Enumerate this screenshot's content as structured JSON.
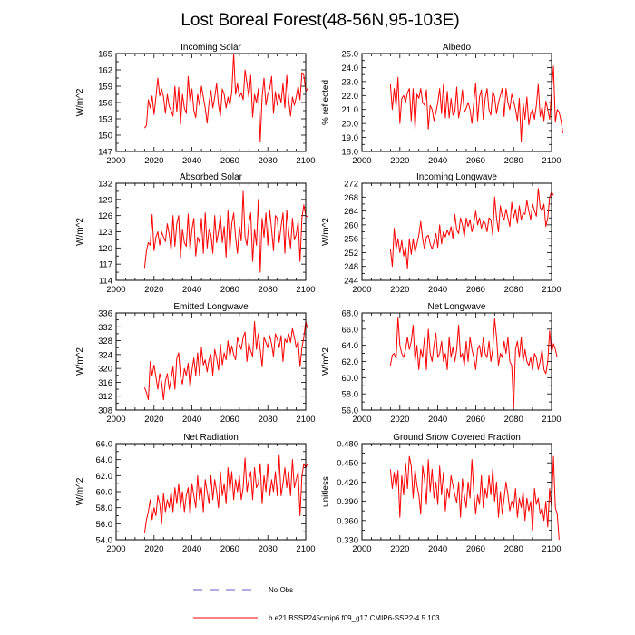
{
  "title": "Lost Boreal Forest(48-56N,95-103E)",
  "colors": {
    "model": "#ff0000",
    "obs": "#6a5acd",
    "axis": "#000000"
  },
  "legend": {
    "obs_label": "No Obs",
    "model_label": "b.e21.BSSP245cmip6.f09_g17.CMIP6-SSP2-4.5.103"
  },
  "chart_data": [
    {
      "type": "line",
      "title": "Incoming Solar",
      "ylabel": "W/m^2",
      "xlim": [
        2000,
        2100
      ],
      "xticks": [
        "2000",
        "2020",
        "2040",
        "2060",
        "2080",
        "2100"
      ],
      "ylim": [
        147,
        165
      ],
      "yticks": [
        "147",
        "150",
        "153",
        "156",
        "159",
        "162",
        "165"
      ],
      "series": [
        {
          "name": "b.e21.BSSP245cmip6.f09_g17.CMIP6-SSP2-4.5.103",
          "x_start": 2015,
          "values": [
            151.3,
            151.8,
            156.5,
            155.0,
            157.2,
            153.8,
            157.0,
            160.5,
            157.2,
            158.5,
            157.0,
            154.0,
            157.5,
            155.3,
            154.5,
            153.5,
            159.0,
            154.3,
            158.8,
            152.0,
            157.5,
            155.0,
            154.0,
            160.8,
            156.0,
            158.5,
            154.5,
            153.2,
            157.5,
            155.5,
            159.0,
            157.0,
            155.0,
            152.2,
            156.0,
            158.2,
            155.0,
            157.0,
            159.5,
            155.5,
            153.5,
            158.5,
            157.5,
            155.0,
            157.0,
            155.5,
            158.0,
            165.0,
            157.5,
            159.5,
            157.0,
            157.8,
            156.5,
            162.0,
            159.5,
            157.0,
            161.0,
            153.3,
            157.5,
            156.0,
            158.5,
            148.8,
            157.0,
            160.5,
            155.5,
            157.5,
            158.5,
            160.8,
            154.0,
            158.0,
            155.5,
            157.5,
            156.0,
            159.5,
            155.0,
            161.0,
            156.5,
            153.5,
            157.0,
            155.5,
            157.0,
            159.0,
            156.5,
            161.5,
            161.0,
            158.0,
            158.6
          ]
        }
      ]
    },
    {
      "type": "line",
      "title": "Albedo",
      "ylabel": "% reflected",
      "xlim": [
        2000,
        2100
      ],
      "xticks": [
        "2000",
        "2020",
        "2040",
        "2060",
        "2080",
        "2100"
      ],
      "ylim": [
        18.0,
        25.0
      ],
      "yticks": [
        "18.0",
        "19.0",
        "20.0",
        "21.0",
        "22.0",
        "23.0",
        "24.0",
        "25.0"
      ],
      "series": [
        {
          "name": "b.e21.BSSP245cmip6.f09_g17.CMIP6-SSP2-4.5.103",
          "x_start": 2015,
          "values": [
            22.8,
            21.0,
            22.5,
            21.2,
            23.3,
            20.0,
            21.8,
            22.0,
            21.5,
            22.2,
            22.5,
            20.2,
            22.5,
            19.6,
            22.1,
            21.8,
            22.5,
            21.5,
            21.3,
            22.4,
            19.6,
            21.3,
            21.0,
            20.2,
            20.8,
            21.5,
            22.5,
            20.7,
            22.8,
            20.4,
            22.3,
            20.4,
            21.8,
            20.6,
            20.8,
            22.6,
            20.4,
            21.2,
            22.4,
            20.8,
            21.1,
            21.5,
            21.0,
            20.0,
            21.5,
            22.9,
            20.2,
            21.9,
            22.4,
            20.3,
            21.8,
            22.5,
            21.0,
            20.6,
            22.3,
            21.9,
            20.7,
            21.5,
            22.0,
            22.5,
            20.5,
            22.5,
            21.5,
            21.0,
            22.1,
            21.6,
            21.0,
            20.2,
            21.8,
            18.7,
            21.5,
            20.3,
            21.9,
            19.9,
            20.7,
            21.0,
            20.3,
            21.3,
            22.8,
            20.5,
            21.2,
            20.2,
            21.6,
            21.0,
            20.3,
            22.3,
            24.1,
            20.1,
            21.0,
            20.8,
            20.2,
            19.3
          ]
        }
      ]
    },
    {
      "type": "line",
      "title": "Absorbed Solar",
      "ylabel": "W/m^2",
      "xlim": [
        2000,
        2100
      ],
      "xticks": [
        "2000",
        "2020",
        "2040",
        "2060",
        "2080",
        "2100"
      ],
      "ylim": [
        114,
        132
      ],
      "yticks": [
        "114",
        "117",
        "120",
        "123",
        "126",
        "129",
        "132"
      ],
      "series": [
        {
          "name": "b.e21.BSSP245cmip6.f09_g17.CMIP6-SSP2-4.5.103",
          "x_start": 2015,
          "values": [
            116.3,
            119.5,
            121.0,
            120.5,
            126.2,
            119.5,
            122.0,
            123.0,
            120.5,
            123.0,
            122.0,
            121.2,
            124.5,
            122.5,
            119.5,
            126.0,
            120.3,
            124.5,
            126.0,
            118.2,
            123.5,
            121.0,
            120.3,
            126.3,
            119.5,
            123.5,
            125.5,
            118.5,
            122.0,
            121.0,
            125.5,
            119.0,
            126.5,
            120.0,
            123.5,
            122.5,
            119.0,
            126.0,
            121.0,
            123.0,
            126.0,
            121.0,
            124.0,
            118.3,
            127.0,
            119.5,
            124.5,
            126.5,
            122.0,
            119.0,
            124.0,
            121.3,
            130.5,
            122.0,
            120.5,
            124.5,
            126.5,
            117.5,
            123.5,
            120.5,
            129.0,
            115.5,
            125.5,
            122.0,
            126.5,
            120.5,
            127.0,
            123.5,
            119.5,
            126.0,
            125.5,
            121.0,
            124.0,
            126.5,
            119.0,
            127.0,
            123.0,
            120.0,
            125.5,
            121.5,
            122.5,
            125.0,
            117.5,
            125.5,
            128.0,
            126.0,
            125.8
          ]
        }
      ]
    },
    {
      "type": "line",
      "title": "Incoming Longwave",
      "ylabel": "W/m^2",
      "xlim": [
        2000,
        2100
      ],
      "xticks": [
        "2000",
        "2020",
        "2040",
        "2060",
        "2080",
        "2100"
      ],
      "ylim": [
        244,
        272
      ],
      "yticks": [
        "244",
        "248",
        "252",
        "256",
        "260",
        "264",
        "268",
        "272"
      ],
      "series": [
        {
          "name": "b.e21.BSSP245cmip6.f09_g17.CMIP6-SSP2-4.5.103",
          "x_start": 2015,
          "values": [
            253.0,
            248.0,
            259.0,
            253.0,
            256.0,
            252.0,
            255.5,
            251.0,
            253.5,
            247.5,
            256.0,
            251.5,
            256.0,
            252.0,
            254.5,
            257.0,
            261.0,
            256.0,
            253.0,
            256.5,
            257.0,
            254.5,
            253.0,
            255.0,
            257.5,
            253.5,
            260.0,
            254.5,
            258.0,
            256.5,
            258.5,
            257.0,
            259.5,
            256.0,
            263.0,
            258.5,
            257.5,
            262.0,
            260.0,
            256.5,
            262.0,
            259.5,
            261.5,
            258.0,
            260.5,
            264.0,
            260.0,
            262.0,
            259.0,
            261.0,
            260.5,
            258.0,
            262.0,
            261.5,
            257.0,
            268.0,
            262.0,
            258.0,
            265.5,
            262.5,
            261.5,
            264.5,
            262.0,
            259.5,
            266.5,
            262.0,
            264.5,
            260.5,
            265.5,
            261.5,
            263.5,
            263.0,
            267.0,
            264.0,
            261.5,
            266.0,
            264.0,
            262.5,
            270.5,
            265.0,
            264.0,
            266.0,
            259.5,
            262.0,
            268.0,
            269.5,
            268.5
          ]
        }
      ]
    },
    {
      "type": "line",
      "title": "Emitted Longwave",
      "ylabel": "W/m^2",
      "xlim": [
        2000,
        2100
      ],
      "xticks": [
        "2000",
        "2020",
        "2040",
        "2060",
        "2080",
        "2100"
      ],
      "ylim": [
        308,
        336
      ],
      "yticks": [
        "308",
        "312",
        "316",
        "320",
        "324",
        "328",
        "332",
        "336"
      ],
      "series": [
        {
          "name": "b.e21.BSSP245cmip6.f09_g17.CMIP6-SSP2-4.5.103",
          "x_start": 2015,
          "values": [
            314.5,
            313.0,
            311.0,
            322.0,
            318.0,
            321.0,
            317.5,
            314.0,
            318.5,
            316.0,
            311.0,
            316.5,
            318.5,
            314.0,
            317.0,
            320.5,
            314.0,
            323.0,
            324.5,
            317.5,
            315.5,
            320.0,
            318.0,
            321.5,
            314.5,
            319.5,
            323.0,
            318.0,
            324.5,
            318.0,
            326.0,
            321.0,
            322.5,
            319.0,
            322.5,
            324.0,
            318.0,
            325.5,
            323.0,
            319.5,
            327.0,
            321.0,
            324.5,
            322.5,
            328.0,
            323.5,
            326.5,
            324.0,
            322.5,
            329.0,
            327.0,
            325.5,
            329.0,
            330.5,
            322.0,
            327.5,
            325.0,
            323.5,
            333.5,
            325.5,
            330.0,
            325.5,
            320.5,
            329.0,
            327.5,
            326.0,
            329.5,
            327.0,
            323.5,
            330.0,
            328.5,
            326.0,
            329.5,
            322.0,
            328.5,
            327.5,
            330.0,
            327.5,
            331.5,
            329.0,
            326.0,
            328.0,
            320.5,
            326.0,
            329.0,
            333.5,
            331.5
          ]
        }
      ]
    },
    {
      "type": "line",
      "title": "Net Longwave",
      "ylabel": "W/m^2",
      "xlim": [
        2000,
        2100
      ],
      "xticks": [
        "2000",
        "2020",
        "2040",
        "2060",
        "2080",
        "2100"
      ],
      "ylim": [
        56.0,
        68.0
      ],
      "yticks": [
        "56.0",
        "58.0",
        "60.0",
        "62.0",
        "64.0",
        "66.0",
        "68.0"
      ],
      "series": [
        {
          "name": "b.e21.BSSP245cmip6.f09_g17.CMIP6-SSP2-4.5.103",
          "x_start": 2015,
          "values": [
            61.5,
            62.8,
            63.0,
            62.3,
            67.5,
            64.0,
            63.0,
            62.5,
            63.5,
            65.0,
            63.5,
            64.5,
            66.5,
            62.0,
            64.0,
            61.0,
            63.5,
            62.5,
            65.0,
            61.0,
            66.0,
            63.0,
            62.0,
            64.0,
            65.5,
            62.5,
            63.0,
            64.5,
            62.0,
            63.0,
            61.0,
            65.0,
            62.5,
            63.8,
            62.0,
            63.5,
            66.5,
            62.5,
            63.0,
            61.5,
            64.5,
            62.0,
            65.0,
            63.5,
            62.5,
            61.0,
            63.5,
            64.0,
            62.5,
            65.0,
            63.0,
            62.5,
            64.5,
            62.0,
            63.5,
            67.3,
            65.0,
            61.5,
            63.0,
            62.5,
            64.5,
            63.0,
            65.0,
            62.0,
            61.5,
            56.2,
            63.5,
            64.5,
            62.5,
            65.0,
            62.0,
            63.5,
            62.0,
            61.5,
            62.5,
            61.0,
            63.0,
            62.5,
            61.0,
            62.0,
            63.5,
            61.0,
            60.5,
            62.0,
            65.8,
            63.0,
            64.2,
            63.5,
            62.5
          ]
        }
      ]
    },
    {
      "type": "line",
      "title": "Net Radiation",
      "ylabel": "W/m^2",
      "xlim": [
        2000,
        2100
      ],
      "xticks": [
        "2000",
        "2020",
        "2040",
        "2060",
        "2080",
        "2100"
      ],
      "ylim": [
        54.0,
        66.0
      ],
      "yticks": [
        "54.0",
        "56.0",
        "58.0",
        "60.0",
        "62.0",
        "64.0",
        "66.0"
      ],
      "series": [
        {
          "name": "b.e21.BSSP245cmip6.f09_g17.CMIP6-SSP2-4.5.103",
          "x_start": 2015,
          "values": [
            54.8,
            56.5,
            57.5,
            59.0,
            56.5,
            58.0,
            57.0,
            59.5,
            58.5,
            56.0,
            59.8,
            57.5,
            59.0,
            58.0,
            60.0,
            57.5,
            60.5,
            58.5,
            61.0,
            58.0,
            60.0,
            57.5,
            59.5,
            60.5,
            57.0,
            61.0,
            59.5,
            58.0,
            62.0,
            59.0,
            60.5,
            57.5,
            61.5,
            60.0,
            58.5,
            62.0,
            59.0,
            61.5,
            60.0,
            58.0,
            62.5,
            59.5,
            61.0,
            58.5,
            63.0,
            60.0,
            62.5,
            59.0,
            61.5,
            60.0,
            62.0,
            59.0,
            60.5,
            64.2,
            60.0,
            61.5,
            62.5,
            59.0,
            63.0,
            60.5,
            61.0,
            63.5,
            58.5,
            62.0,
            60.0,
            63.5,
            59.5,
            61.5,
            60.0,
            62.5,
            59.5,
            64.5,
            59.5,
            61.0,
            63.0,
            60.5,
            62.5,
            59.5,
            64.0,
            60.5,
            61.5,
            62.5,
            57.0,
            62.0,
            63.5,
            63.0,
            63.5
          ]
        }
      ]
    },
    {
      "type": "line",
      "title": "Ground Snow Covered Fraction",
      "ylabel": "unitless",
      "xlim": [
        2000,
        2100
      ],
      "xticks": [
        "2000",
        "2020",
        "2040",
        "2060",
        "2080",
        "2100"
      ],
      "ylim": [
        0.33,
        0.48
      ],
      "yticks": [
        "0.330",
        "0.360",
        "0.390",
        "0.420",
        "0.450",
        "0.480"
      ],
      "series": [
        {
          "name": "b.e21.BSSP245cmip6.f09_g17.CMIP6-SSP2-4.5.103",
          "x_start": 2015,
          "values": [
            0.44,
            0.41,
            0.435,
            0.41,
            0.438,
            0.365,
            0.43,
            0.4,
            0.45,
            0.41,
            0.46,
            0.445,
            0.395,
            0.44,
            0.415,
            0.4,
            0.37,
            0.445,
            0.425,
            0.385,
            0.455,
            0.405,
            0.44,
            0.395,
            0.42,
            0.385,
            0.445,
            0.4,
            0.435,
            0.375,
            0.41,
            0.395,
            0.43,
            0.415,
            0.4,
            0.388,
            0.42,
            0.365,
            0.425,
            0.4,
            0.38,
            0.42,
            0.395,
            0.455,
            0.405,
            0.37,
            0.4,
            0.385,
            0.43,
            0.38,
            0.41,
            0.395,
            0.43,
            0.4,
            0.44,
            0.39,
            0.42,
            0.365,
            0.405,
            0.37,
            0.395,
            0.42,
            0.4,
            0.375,
            0.39,
            0.38,
            0.41,
            0.365,
            0.395,
            0.38,
            0.405,
            0.36,
            0.395,
            0.375,
            0.39,
            0.345,
            0.41,
            0.385,
            0.395,
            0.37,
            0.38,
            0.36,
            0.39,
            0.35,
            0.41,
            0.38,
            0.46,
            0.38,
            0.37,
            0.33
          ]
        }
      ]
    }
  ]
}
